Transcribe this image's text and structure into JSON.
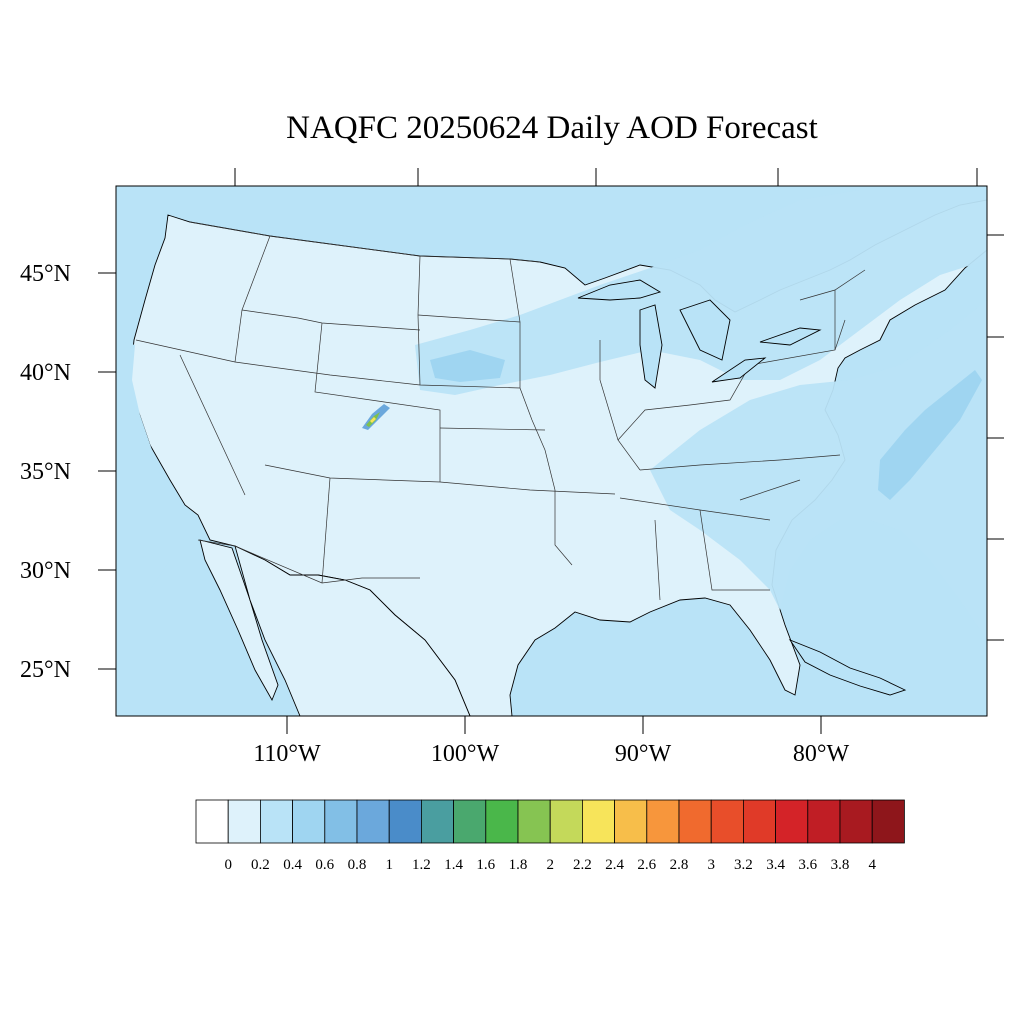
{
  "title": "NAQFC 20250624 Daily AOD Forecast",
  "colors": {
    "ocean": "#b9e3f7",
    "land": "#def2fb",
    "plume_light": "#b9e3f7",
    "plume_mid": "#9fd5f1",
    "plume_blue": "#6ba8dc",
    "plume_green": "#7fc24a",
    "plume_yellow": "#f7e45a",
    "outline": "#000000"
  },
  "axes": {
    "lat_labels": [
      "45°N",
      "40°N",
      "35°N",
      "30°N",
      "25°N"
    ],
    "lon_labels": [
      "110°W",
      "100°W",
      "90°W",
      "80°W"
    ]
  },
  "colorbar": {
    "labels": [
      "0",
      "0.2",
      "0.4",
      "0.6",
      "0.8",
      "1",
      "1.2",
      "1.4",
      "1.6",
      "1.8",
      "2",
      "2.2",
      "2.4",
      "2.6",
      "2.8",
      "3",
      "3.2",
      "3.4",
      "3.6",
      "3.8",
      "4"
    ],
    "colors": [
      "#ffffff",
      "#def2fb",
      "#b9e3f7",
      "#9fd5f1",
      "#82bfe6",
      "#6ba8dc",
      "#4a8cc9",
      "#4a9ea0",
      "#4aa86e",
      "#4ab74a",
      "#86c452",
      "#c4d95a",
      "#f7e45a",
      "#f7be4a",
      "#f7963c",
      "#f06a2e",
      "#e84e2a",
      "#e03a28",
      "#d42328",
      "#c01e25",
      "#a81a20",
      "#8e161b"
    ]
  }
}
